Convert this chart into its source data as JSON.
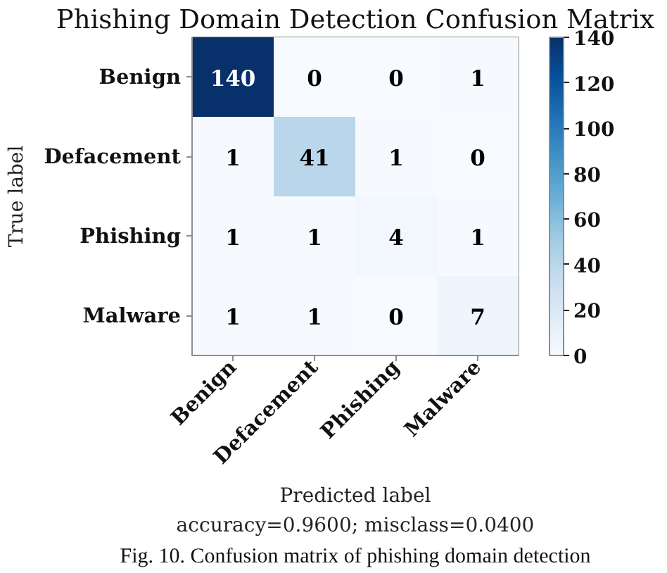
{
  "chart_data": {
    "type": "heatmap",
    "title": "Phishing Domain Detection Confusion Matrix",
    "xlabel": "Predicted label",
    "ylabel": "True label",
    "categories": [
      "Benign",
      "Defacement",
      "Phishing",
      "Malware"
    ],
    "y_categories": [
      "Benign",
      "Defacement",
      "Phishing",
      "Malware"
    ],
    "cells": [
      [
        140,
        0,
        0,
        1
      ],
      [
        1,
        41,
        1,
        0
      ],
      [
        1,
        1,
        4,
        1
      ],
      [
        1,
        1,
        0,
        7
      ]
    ],
    "clim": [
      0,
      140
    ],
    "cticks": [
      0,
      20,
      40,
      60,
      80,
      100,
      120,
      140
    ],
    "data_labels": true,
    "annotations": [
      "accuracy=0.9600; misclass=0.0400",
      "Fig. 10. Confusion matrix of phishing domain detection"
    ]
  }
}
